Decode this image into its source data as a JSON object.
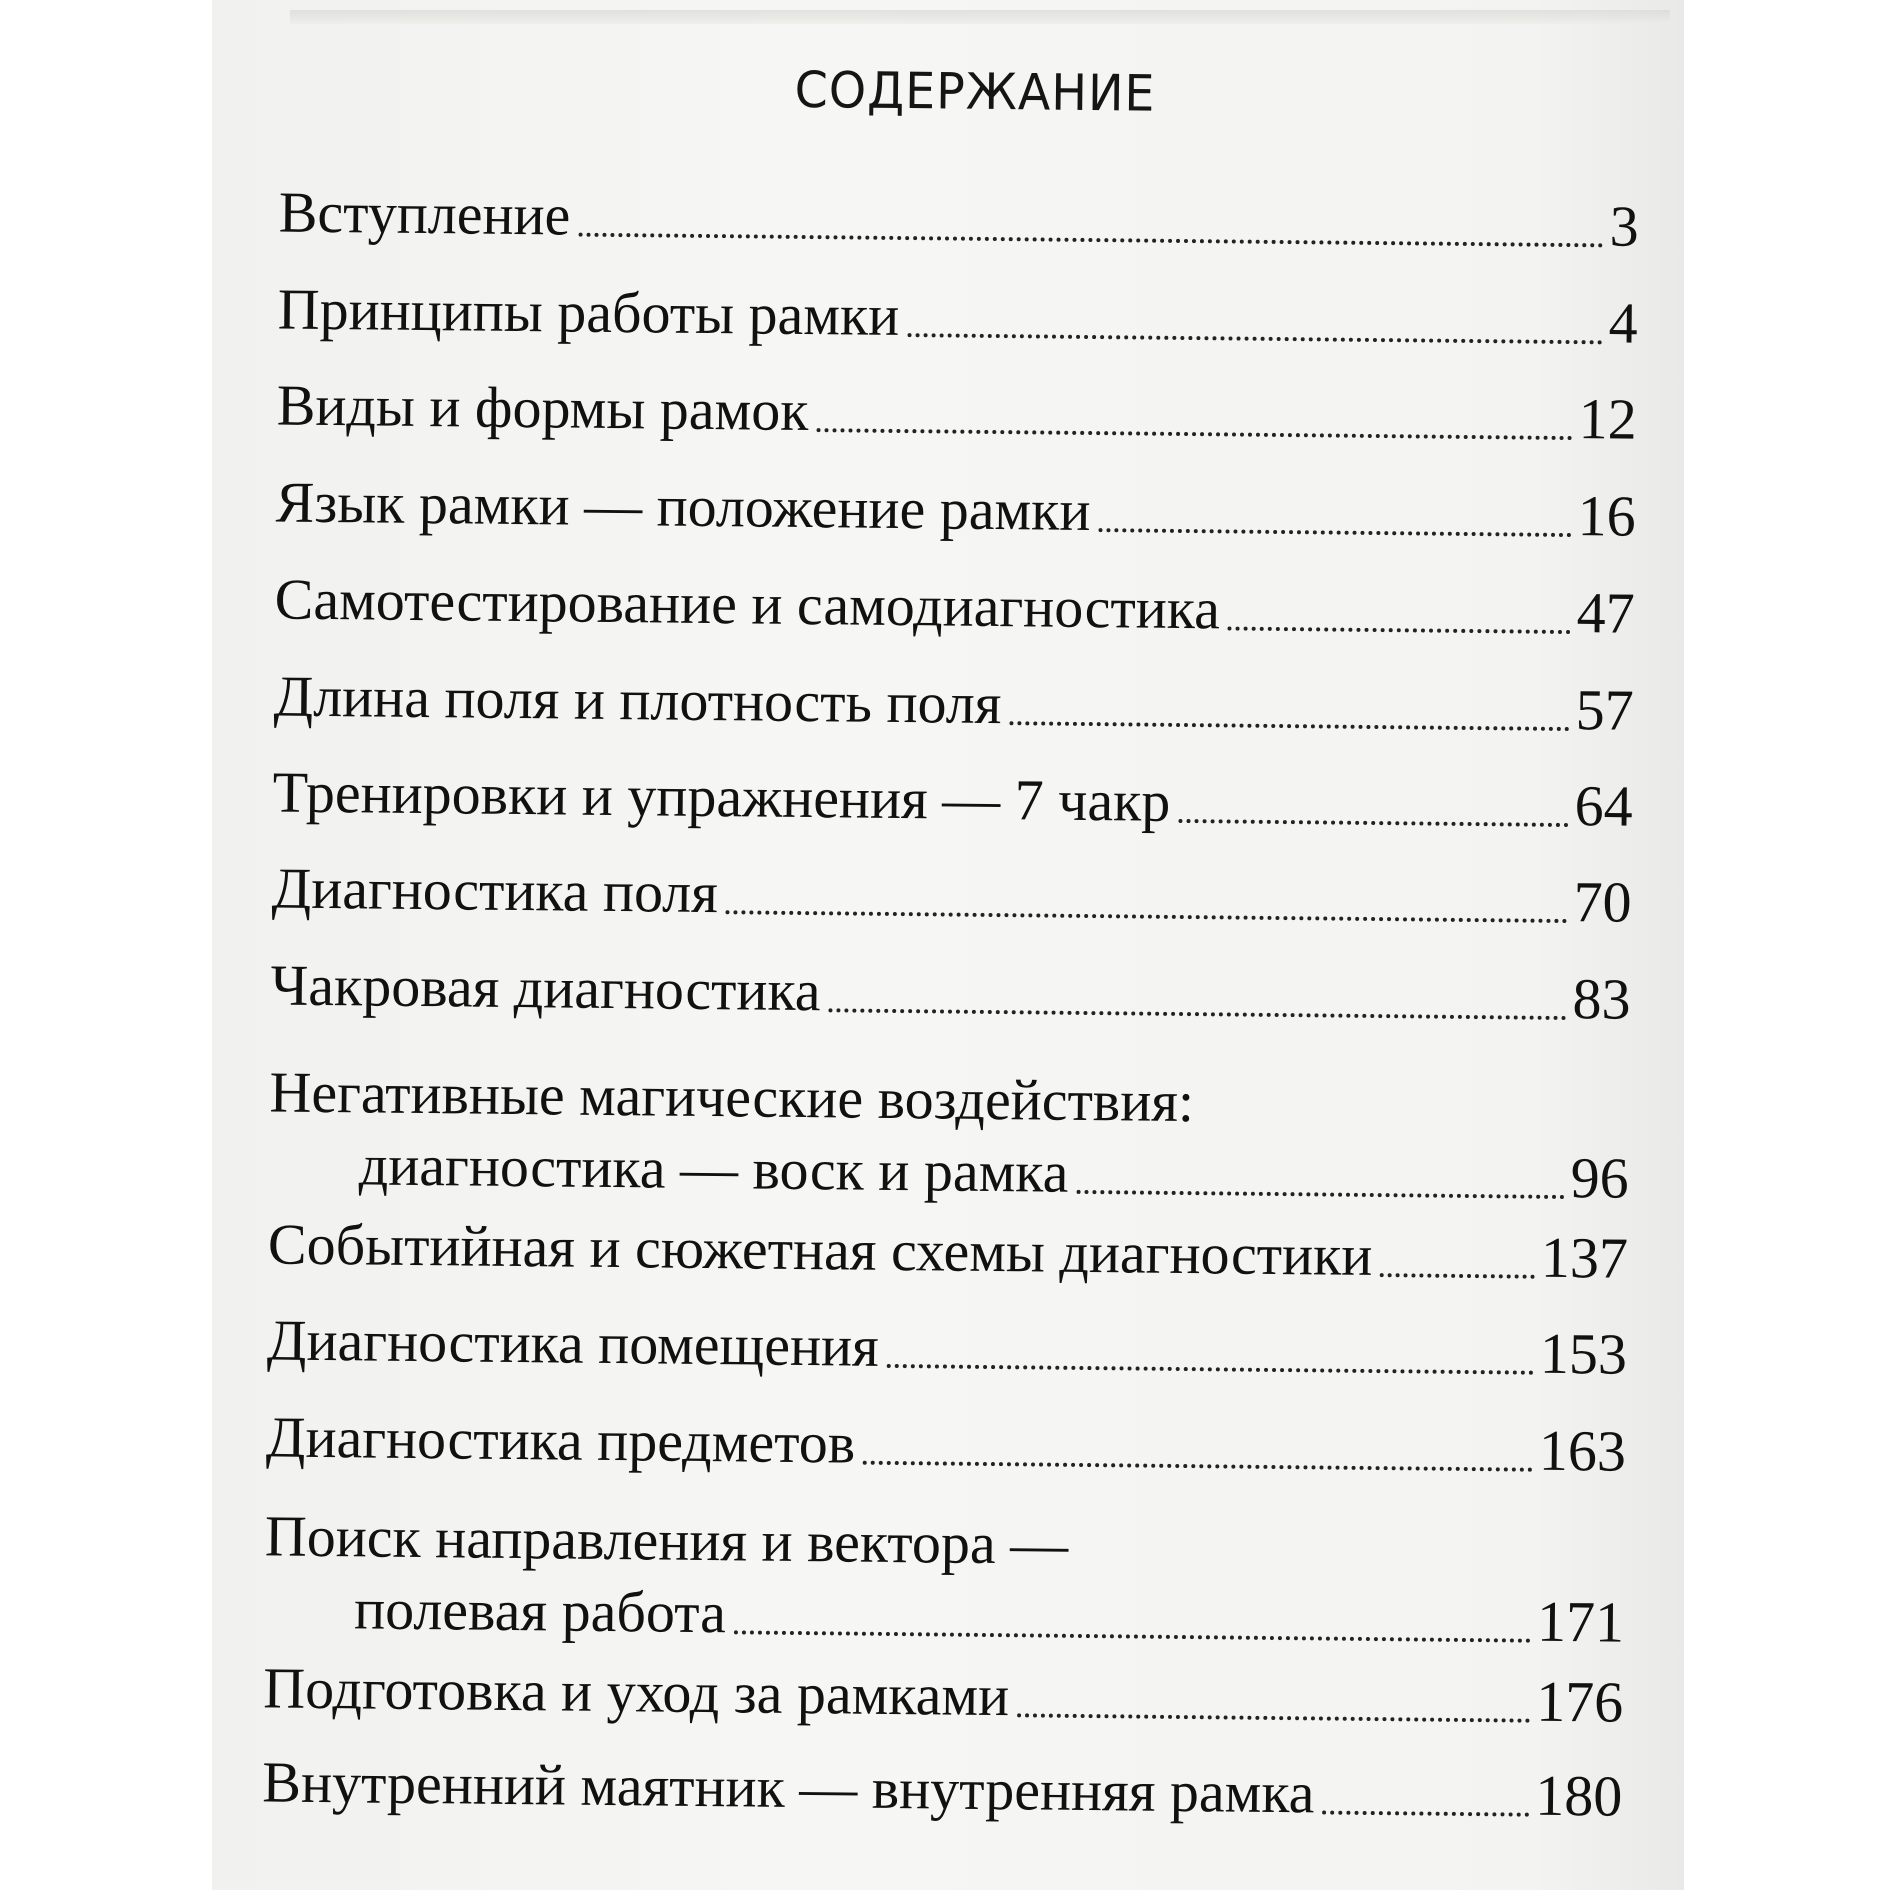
{
  "title": "СОДЕРЖАНИЕ",
  "entries": [
    {
      "title": "Вступление",
      "page": "3"
    },
    {
      "title": "Принципы работы рамки",
      "page": "4"
    },
    {
      "title": "Виды и формы рамок",
      "page": "12"
    },
    {
      "title": "Язык рамки — положение рамки",
      "page": "16"
    },
    {
      "title": "Самотестирование и самодиагностика",
      "page": "47"
    },
    {
      "title": "Длина поля и плотность поля",
      "page": "57"
    },
    {
      "title": "Тренировки и упражнения — 7 чакр",
      "page": "64"
    },
    {
      "title": "Диагностика поля",
      "page": "70"
    },
    {
      "title": "Чакровая диагностика",
      "page": "83"
    },
    {
      "title": "Негативные магические воздействия:",
      "title2": "диагностика — воск и рамка",
      "page": "96"
    },
    {
      "title": "Событийная и сюжетная схемы диагностики",
      "page": "137"
    },
    {
      "title": "Диагностика помещения",
      "page": "153"
    },
    {
      "title": "Диагностика предметов",
      "page": "163"
    },
    {
      "title": "Поиск направления и вектора —",
      "title2": "полевая работа",
      "page": "171"
    },
    {
      "title": "Подготовка и уход за рамками",
      "page": "176"
    },
    {
      "title": "Внутренний маятник — внутренняя рамка",
      "page": "180"
    }
  ]
}
